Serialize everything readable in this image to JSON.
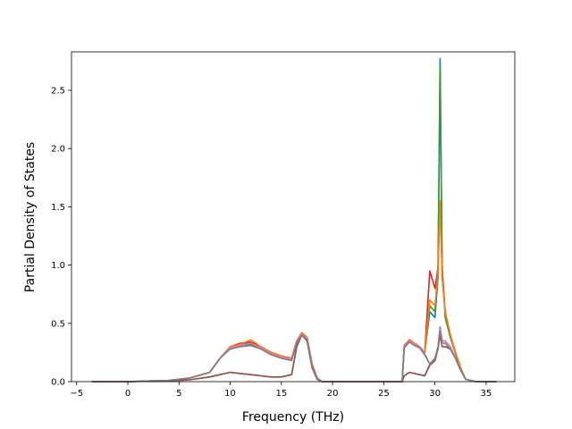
{
  "chart_data": {
    "type": "line",
    "title": "",
    "xlabel": "Frequency (THz)",
    "ylabel": "Partial Density of States",
    "xlim": [
      -5.5,
      37.8
    ],
    "ylim": [
      0,
      2.83
    ],
    "xticks": [
      -5,
      0,
      5,
      10,
      15,
      20,
      25,
      30,
      35
    ],
    "xtick_labels": [
      "−5",
      "0",
      "5",
      "10",
      "15",
      "20",
      "25",
      "30",
      "35"
    ],
    "yticks": [
      0,
      0.5,
      1.0,
      1.5,
      2.0,
      2.5
    ],
    "ytick_labels": [
      "0.0",
      "0.5",
      "1.0",
      "1.5",
      "2.0",
      "2.5"
    ],
    "grid": false,
    "legend": false,
    "series": [
      {
        "color": "#1f77b4",
        "x": [
          -3.5,
          0,
          2,
          4,
          6,
          8,
          9,
          10,
          11,
          12,
          13,
          14,
          15,
          16,
          16.5,
          17,
          17.5,
          18,
          18.5,
          19,
          20,
          25,
          26.8,
          27,
          27.5,
          28,
          28.5,
          29,
          29.5,
          30,
          30.3,
          30.5,
          30.7,
          31,
          31.5,
          32,
          32.5,
          33,
          34,
          36
        ],
        "y": [
          0,
          0,
          0.005,
          0.01,
          0.03,
          0.08,
          0.2,
          0.3,
          0.32,
          0.33,
          0.3,
          0.25,
          0.22,
          0.2,
          0.35,
          0.42,
          0.38,
          0.15,
          0.03,
          0,
          0,
          0,
          0,
          0.3,
          0.36,
          0.33,
          0.3,
          0.25,
          0.6,
          0.55,
          0.9,
          2.77,
          0.9,
          0.6,
          0.4,
          0.25,
          0.12,
          0.02,
          0,
          0
        ]
      },
      {
        "color": "#2ca02c",
        "x": [
          -3.5,
          0,
          2,
          4,
          6,
          8,
          9,
          10,
          11,
          12,
          13,
          14,
          15,
          16,
          16.5,
          17,
          17.5,
          18,
          18.5,
          19,
          20,
          25,
          26.8,
          27,
          27.5,
          28,
          28.5,
          29,
          29.5,
          30,
          30.3,
          30.5,
          30.7,
          31,
          31.5,
          32,
          32.5,
          33,
          34,
          36
        ],
        "y": [
          0,
          0,
          0.005,
          0.01,
          0.03,
          0.08,
          0.2,
          0.29,
          0.31,
          0.32,
          0.29,
          0.24,
          0.21,
          0.19,
          0.34,
          0.41,
          0.37,
          0.14,
          0.03,
          0,
          0,
          0,
          0,
          0.3,
          0.35,
          0.32,
          0.3,
          0.24,
          0.65,
          0.6,
          1.0,
          2.7,
          1.0,
          0.55,
          0.38,
          0.24,
          0.11,
          0.02,
          0,
          0
        ]
      },
      {
        "color": "#d62728",
        "x": [
          -3.5,
          0,
          2,
          4,
          6,
          8,
          9,
          10,
          11,
          12,
          13,
          14,
          15,
          16,
          16.5,
          17,
          17.5,
          18,
          18.5,
          19,
          20,
          25,
          26.8,
          27,
          27.5,
          28,
          28.5,
          29,
          29.5,
          30,
          30.3,
          30.5,
          30.7,
          31,
          31.5,
          32,
          32.5,
          33,
          34,
          36
        ],
        "y": [
          0,
          0,
          0.005,
          0.01,
          0.03,
          0.08,
          0.2,
          0.3,
          0.33,
          0.34,
          0.3,
          0.25,
          0.22,
          0.2,
          0.35,
          0.42,
          0.38,
          0.15,
          0.03,
          0,
          0,
          0,
          0,
          0.31,
          0.36,
          0.33,
          0.3,
          0.25,
          0.95,
          0.8,
          0.98,
          1.53,
          0.95,
          0.6,
          0.4,
          0.25,
          0.12,
          0.02,
          0,
          0
        ]
      },
      {
        "color": "#ff7f0e",
        "x": [
          -3.5,
          0,
          2,
          4,
          6,
          8,
          9,
          10,
          11,
          12,
          13,
          14,
          15,
          16,
          16.5,
          17,
          17.5,
          18,
          18.5,
          19,
          20,
          25,
          26.8,
          27,
          27.5,
          28,
          28.5,
          29,
          29.5,
          30,
          30.3,
          30.5,
          30.7,
          31,
          31.5,
          32,
          32.5,
          33,
          34,
          36
        ],
        "y": [
          0,
          0,
          0.005,
          0.01,
          0.03,
          0.08,
          0.2,
          0.3,
          0.32,
          0.36,
          0.3,
          0.25,
          0.22,
          0.2,
          0.35,
          0.42,
          0.38,
          0.15,
          0.03,
          0,
          0,
          0,
          0,
          0.3,
          0.36,
          0.33,
          0.3,
          0.25,
          0.7,
          0.65,
          0.95,
          1.55,
          0.9,
          0.6,
          0.4,
          0.25,
          0.12,
          0.02,
          0,
          0
        ]
      },
      {
        "color": "#9467bd",
        "x": [
          -3.5,
          0,
          2,
          4,
          6,
          8,
          9,
          10,
          11,
          12,
          13,
          14,
          15,
          16,
          16.5,
          17,
          17.5,
          18,
          18.5,
          19,
          20,
          25,
          26.8,
          27,
          27.5,
          28,
          28.5,
          29,
          29.5,
          30,
          30.3,
          30.5,
          30.7,
          31,
          31.5,
          32,
          32.5,
          33,
          34,
          36
        ],
        "y": [
          0,
          0,
          0.003,
          0.006,
          0.015,
          0.04,
          0.06,
          0.08,
          0.07,
          0.06,
          0.05,
          0.04,
          0.04,
          0.06,
          0.3,
          0.4,
          0.35,
          0.12,
          0.02,
          0,
          0,
          0,
          0,
          0.05,
          0.08,
          0.07,
          0.06,
          0.05,
          0.15,
          0.2,
          0.3,
          0.47,
          0.35,
          0.35,
          0.3,
          0.2,
          0.1,
          0.02,
          0,
          0
        ]
      },
      {
        "color": "#8c564b",
        "x": [
          -3.5,
          0,
          2,
          4,
          6,
          8,
          9,
          10,
          11,
          12,
          13,
          14,
          15,
          16,
          16.5,
          17,
          17.5,
          18,
          18.5,
          19,
          20,
          25,
          26.8,
          27,
          27.5,
          28,
          28.5,
          29,
          29.5,
          30,
          30.3,
          30.5,
          30.7,
          31,
          31.5,
          32,
          32.5,
          33,
          34,
          36
        ],
        "y": [
          0,
          0,
          0.003,
          0.006,
          0.015,
          0.04,
          0.06,
          0.08,
          0.07,
          0.06,
          0.05,
          0.04,
          0.04,
          0.06,
          0.3,
          0.4,
          0.35,
          0.12,
          0.02,
          0,
          0,
          0,
          0,
          0.05,
          0.08,
          0.07,
          0.06,
          0.05,
          0.14,
          0.18,
          0.28,
          0.4,
          0.3,
          0.3,
          0.28,
          0.2,
          0.1,
          0.02,
          0,
          0
        ]
      },
      {
        "color": "#e377c2",
        "x": [
          -3.5,
          0,
          2,
          4,
          6,
          8,
          9,
          10,
          11,
          12,
          13,
          14,
          15,
          16,
          16.5,
          17,
          17.5,
          18,
          18.5,
          19,
          20,
          25,
          26.8,
          27,
          27.5,
          28,
          28.5,
          29,
          29.5,
          30,
          30.3,
          30.5,
          30.7,
          31,
          31.5,
          32,
          32.5,
          33,
          34,
          36
        ],
        "y": [
          0,
          0,
          0.005,
          0.01,
          0.03,
          0.08,
          0.2,
          0.29,
          0.31,
          0.33,
          0.29,
          0.24,
          0.21,
          0.19,
          0.34,
          0.41,
          0.37,
          0.14,
          0.03,
          0,
          0,
          0,
          0,
          0.3,
          0.35,
          0.32,
          0.3,
          0.24,
          0.15,
          0.2,
          0.3,
          0.45,
          0.35,
          0.35,
          0.3,
          0.2,
          0.1,
          0.02,
          0,
          0
        ]
      },
      {
        "color": "#7f7f7f",
        "x": [
          -3.5,
          0,
          2,
          4,
          6,
          8,
          9,
          10,
          11,
          12,
          13,
          14,
          15,
          16,
          16.5,
          17,
          17.5,
          18,
          18.5,
          19,
          20,
          25,
          26.8,
          27,
          27.5,
          28,
          28.5,
          29,
          29.5,
          30,
          30.3,
          30.5,
          30.7,
          31,
          31.5,
          32,
          32.5,
          33,
          34,
          36
        ],
        "y": [
          0,
          0,
          0.005,
          0.01,
          0.03,
          0.08,
          0.2,
          0.28,
          0.3,
          0.31,
          0.28,
          0.23,
          0.2,
          0.18,
          0.33,
          0.4,
          0.36,
          0.13,
          0.03,
          0,
          0,
          0,
          0,
          0.29,
          0.34,
          0.31,
          0.29,
          0.23,
          0.15,
          0.2,
          0.3,
          0.43,
          0.33,
          0.33,
          0.28,
          0.2,
          0.1,
          0.02,
          0,
          0
        ]
      }
    ]
  }
}
